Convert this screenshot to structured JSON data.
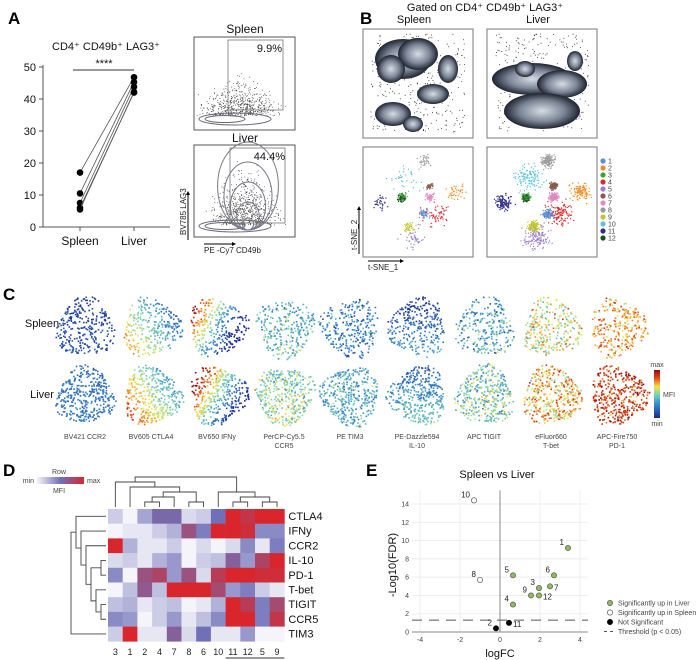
{
  "panels": {
    "a": "A",
    "b": "B",
    "c": "C",
    "d": "D",
    "e": "E"
  },
  "panel_a": {
    "title": "CD4⁺ CD49b⁺ LAG3⁺",
    "significance": "****",
    "flow": {
      "spleen_label": "Spleen",
      "spleen_pct": "9.9%",
      "liver_label": "Liver",
      "liver_pct": "44.4%",
      "y_axis_label": "BV785  LAG3",
      "x_axis_label": "PE -Cy7  CD49b"
    }
  },
  "panel_b": {
    "title": "Gated on CD4⁺ CD49b⁺ LAG3⁺",
    "spleen_label": "Spleen",
    "liver_label": "Liver",
    "x_axis_label": "t-SNE_1",
    "y_axis_label": "t-SNE_2",
    "clusters": [
      {
        "label": "1",
        "color": "#5b8fd6"
      },
      {
        "label": "2",
        "color": "#f08a24"
      },
      {
        "label": "3",
        "color": "#3aa43a"
      },
      {
        "label": "4",
        "color": "#d92b2b"
      },
      {
        "label": "5",
        "color": "#9c7fc9"
      },
      {
        "label": "6",
        "color": "#8c5a4a"
      },
      {
        "label": "7",
        "color": "#e08ac4"
      },
      {
        "label": "8",
        "color": "#9a9a9a"
      },
      {
        "label": "9",
        "color": "#c2c42a"
      },
      {
        "label": "10",
        "color": "#5cc3d9"
      },
      {
        "label": "11",
        "color": "#2e2e8a"
      },
      {
        "label": "12",
        "color": "#1f4d1f"
      }
    ]
  },
  "panel_c": {
    "row_labels": [
      "Spleen",
      "Liver"
    ],
    "markers": [
      {
        "line1": "BV421 CCR2",
        "line2": ""
      },
      {
        "line1": "BV605 CTLA4",
        "line2": ""
      },
      {
        "line1": "BV650 IFNy",
        "line2": ""
      },
      {
        "line1": "PerCP-Cy5.5",
        "line2": "CCR5"
      },
      {
        "line1": "PE TIM3",
        "line2": ""
      },
      {
        "line1": "PE-Dazzle594",
        "line2": "IL-10"
      },
      {
        "line1": "APC TIGIT",
        "line2": ""
      },
      {
        "line1": "eFluor660",
        "line2": "T-bet"
      },
      {
        "line1": "APC-Fire750",
        "line2": "PD-1"
      }
    ],
    "colorbar": {
      "max": "max",
      "label": "MFI",
      "min": "min"
    }
  },
  "chart_data": [
    {
      "type": "line",
      "panel": "A",
      "title": "CD4⁺ CD49b⁺ LAG3⁺",
      "categories": [
        "Spleen",
        "Liver"
      ],
      "ylim": [
        0,
        50
      ],
      "yticks": [
        "0",
        "10",
        "20",
        "30",
        "40",
        "50"
      ],
      "pairs": [
        [
          17,
          46.8
        ],
        [
          10.5,
          45.3
        ],
        [
          7.5,
          43.8
        ],
        [
          6.0,
          42.0
        ],
        [
          5.5,
          42.2
        ]
      ],
      "annotation": "****"
    },
    {
      "type": "heatmap",
      "panel": "D",
      "legend": {
        "top": "Row",
        "bottom": "MFI",
        "min": "min",
        "max": "max"
      },
      "rows": [
        "CTLA4",
        "IFNy",
        "CCR2",
        "IL-10",
        "PD-1",
        "T-bet",
        "TIGIT",
        "CCR5",
        "TIM3"
      ],
      "columns": [
        "3",
        "1",
        "2",
        "4",
        "7",
        "8",
        "6",
        "10",
        "11",
        "12",
        "5",
        "9"
      ],
      "values": [
        [
          0.15,
          0,
          0.3,
          0.55,
          0.55,
          0.1,
          0.15,
          0.5,
          1,
          0.9,
          1,
          1
        ],
        [
          0,
          0.05,
          0.05,
          0.15,
          0.25,
          0.7,
          0.45,
          1,
          1,
          0.95,
          0.4,
          0.4
        ],
        [
          1,
          0.25,
          0.05,
          0.05,
          0.15,
          0,
          0.1,
          0,
          0.1,
          0.4,
          0.05,
          0.45
        ],
        [
          0.1,
          0.15,
          0.05,
          0.25,
          0.35,
          0,
          0.15,
          0.2,
          0.6,
          0.35,
          0.8,
          1
        ],
        [
          0.4,
          0,
          0.7,
          0.8,
          0.35,
          0.7,
          0.1,
          0.85,
          1,
          1,
          0.95,
          0.95
        ],
        [
          0,
          0.2,
          0.65,
          0.2,
          1,
          1,
          1,
          0.75,
          0.35,
          0.45,
          0.15,
          0.05
        ],
        [
          0.2,
          0.25,
          0.05,
          0.15,
          0.2,
          0,
          0.05,
          0.25,
          1,
          0.85,
          0.45,
          0.75
        ],
        [
          0.4,
          0.35,
          0,
          0.15,
          0.35,
          0.05,
          0.2,
          0.4,
          1,
          1,
          0.45,
          0.9
        ],
        [
          0.15,
          1,
          0.05,
          0.05,
          0.6,
          0.1,
          0.5,
          0.05,
          0.05,
          0.35,
          0,
          0
        ]
      ],
      "colors": {
        "min": "#f4f4fa",
        "mid": "#7070b8",
        "max": "#d8262c"
      }
    },
    {
      "type": "scatter",
      "panel": "E",
      "title": "Spleen vs Liver",
      "xlabel": "logFC",
      "ylabel": "-Log10(FDR)",
      "xlim": [
        -4.4,
        4.4
      ],
      "ylim": [
        0,
        15.5
      ],
      "xticks": [
        "-4",
        "-2",
        "0",
        "2",
        "4"
      ],
      "yticks": [
        "0",
        "2",
        "4",
        "6",
        "8",
        "10",
        "12",
        "14"
      ],
      "threshold": 1.3,
      "grid": true,
      "legend_position": "bottom-right",
      "series": [
        {
          "name": "Significantly up in Liver",
          "color": "#8fbc5a",
          "points": [
            {
              "label": "1",
              "x": 3.4,
              "y": 9.2
            },
            {
              "label": "5",
              "x": 0.65,
              "y": 6.2
            },
            {
              "label": "6",
              "x": 2.7,
              "y": 6.2
            },
            {
              "label": "7",
              "x": 2.5,
              "y": 5.0
            },
            {
              "label": "3",
              "x": 1.95,
              "y": 4.8
            },
            {
              "label": "9",
              "x": 1.55,
              "y": 4.0
            },
            {
              "label": "12",
              "x": 1.95,
              "y": 4.0
            },
            {
              "label": "4",
              "x": 0.65,
              "y": 3.0
            }
          ]
        },
        {
          "name": "Significantly up in Spleen",
          "color": "#ffffff",
          "points": [
            {
              "label": "10",
              "x": -1.3,
              "y": 14.4
            },
            {
              "label": "8",
              "x": -1.0,
              "y": 5.7
            }
          ]
        },
        {
          "name": "Not Significant",
          "color": "#000000",
          "points": [
            {
              "label": "2",
              "x": -0.2,
              "y": 0.4
            },
            {
              "label": "11",
              "x": 0.45,
              "y": 1.0
            }
          ]
        }
      ],
      "threshold_label": "Threshold (p < 0.05)"
    }
  ]
}
